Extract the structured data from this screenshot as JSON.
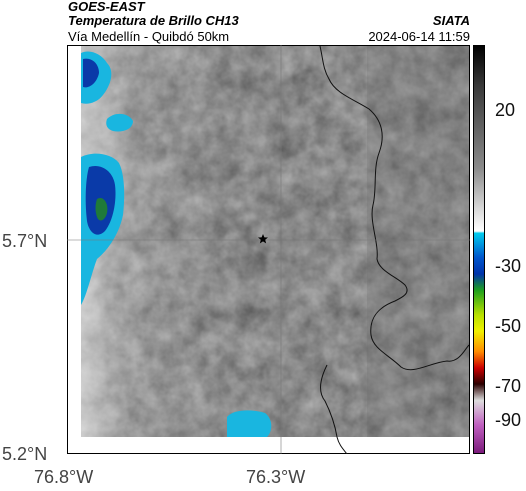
{
  "header": {
    "title_line1": "GOES-EAST",
    "title_line2": "Temperatura de Brillo CH13",
    "org": "SIATA",
    "route": "Vía Medellín - Quibdó 50km",
    "datetime": "2024-06-14 11:59"
  },
  "axes": {
    "lat_labels": [
      "5.7°N",
      "5.2°N"
    ],
    "lon_labels": [
      "76.8°W",
      "76.3°W"
    ]
  },
  "colorbar": {
    "tick_labels": [
      "20",
      "-30",
      "-50",
      "-70",
      "-90"
    ],
    "colors": {
      "warm_top": "#000000",
      "gray_mid": "#9a9a9a",
      "white": "#ffffff",
      "cyan": "#00b8e6",
      "blue": "#0033aa",
      "green": "#1ea01e",
      "yellow": "#f0f000",
      "orange": "#ff8c00",
      "red": "#cc0000",
      "dark": "#2a0000",
      "magenta": "#c040c0"
    }
  },
  "map": {
    "marker_icon": "star-icon",
    "colors": {
      "background": "#9e9e9e",
      "cloud_cyan": "#19b6e0",
      "cloud_blue": "#0a3aa8",
      "cloud_green": "#1f7a3a",
      "coastline": "#111111",
      "gridline": "#7a7a7a"
    }
  }
}
